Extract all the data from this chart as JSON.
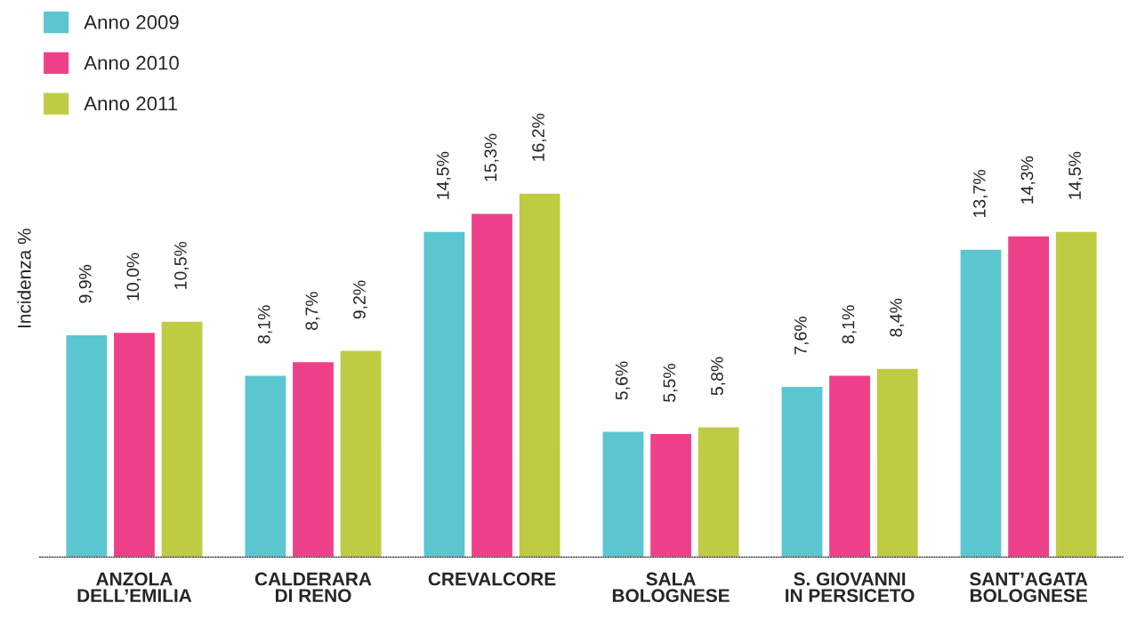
{
  "chart_data": {
    "type": "bar",
    "ylabel": "Incidenza %",
    "categories": [
      "ANZOLA\nDELL’EMILIA",
      "CALDERARA\nDI RENO",
      "CREVALCORE",
      "SALA\nBOLOGNESE",
      "S. GIOVANNI\nIN PERSICETO",
      "SANT’AGATA\nBOLOGNESE"
    ],
    "series": [
      {
        "name": "Anno 2009",
        "color": "#5bc5d0",
        "values": [
          9.9,
          8.1,
          14.5,
          5.6,
          7.6,
          13.7
        ],
        "value_labels": [
          "9,9%",
          "8,1%",
          "14,5%",
          "5,6%",
          "7,6%",
          "13,7%"
        ]
      },
      {
        "name": "Anno 2010",
        "color": "#ee4089",
        "values": [
          10.0,
          8.7,
          15.3,
          5.5,
          8.1,
          14.3
        ],
        "value_labels": [
          "10,0%",
          "8,7%",
          "15,3%",
          "5,5%",
          "8,1%",
          "14,3%"
        ]
      },
      {
        "name": "Anno 2011",
        "color": "#bfcb42",
        "values": [
          10.5,
          9.2,
          16.2,
          5.8,
          8.4,
          14.5
        ],
        "value_labels": [
          "10,5%",
          "9,2%",
          "16,2%",
          "5,8%",
          "8,4%",
          "14,5%"
        ]
      }
    ],
    "legend": "top left",
    "grid": false
  }
}
